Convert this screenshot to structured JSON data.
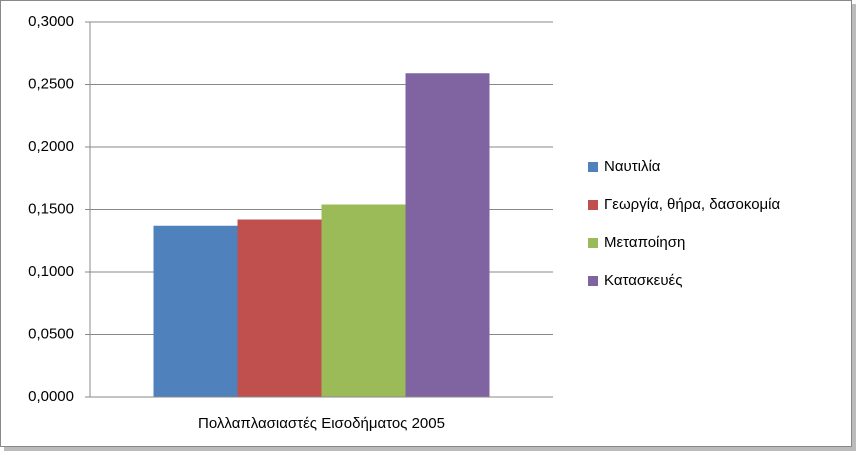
{
  "chart_data": {
    "type": "bar",
    "categories": [
      "Πολλαπλασιαστές Εισοδήματος 2005"
    ],
    "series": [
      {
        "name": "Ναυτιλία",
        "color": "#4f81bd",
        "values": [
          0.137
        ]
      },
      {
        "name": "Γεωργία, θήρα, δασοκομία",
        "color": "#c0504d",
        "values": [
          0.142
        ]
      },
      {
        "name": "Μεταποίηση",
        "color": "#9bbb59",
        "values": [
          0.154
        ]
      },
      {
        "name": "Κατασκευές",
        "color": "#8064a2",
        "values": [
          0.259
        ]
      }
    ],
    "ylim": [
      0,
      0.3
    ],
    "yticks": [
      {
        "value": 0,
        "label": "0,0000"
      },
      {
        "value": 0.05,
        "label": "0,0500"
      },
      {
        "value": 0.1,
        "label": "0,1000"
      },
      {
        "value": 0.15,
        "label": "0,1500"
      },
      {
        "value": 0.2,
        "label": "0,2000"
      },
      {
        "value": 0.25,
        "label": "0,2500"
      },
      {
        "value": 0.3,
        "label": "0,3000"
      }
    ],
    "grid": true,
    "legend": "right"
  }
}
